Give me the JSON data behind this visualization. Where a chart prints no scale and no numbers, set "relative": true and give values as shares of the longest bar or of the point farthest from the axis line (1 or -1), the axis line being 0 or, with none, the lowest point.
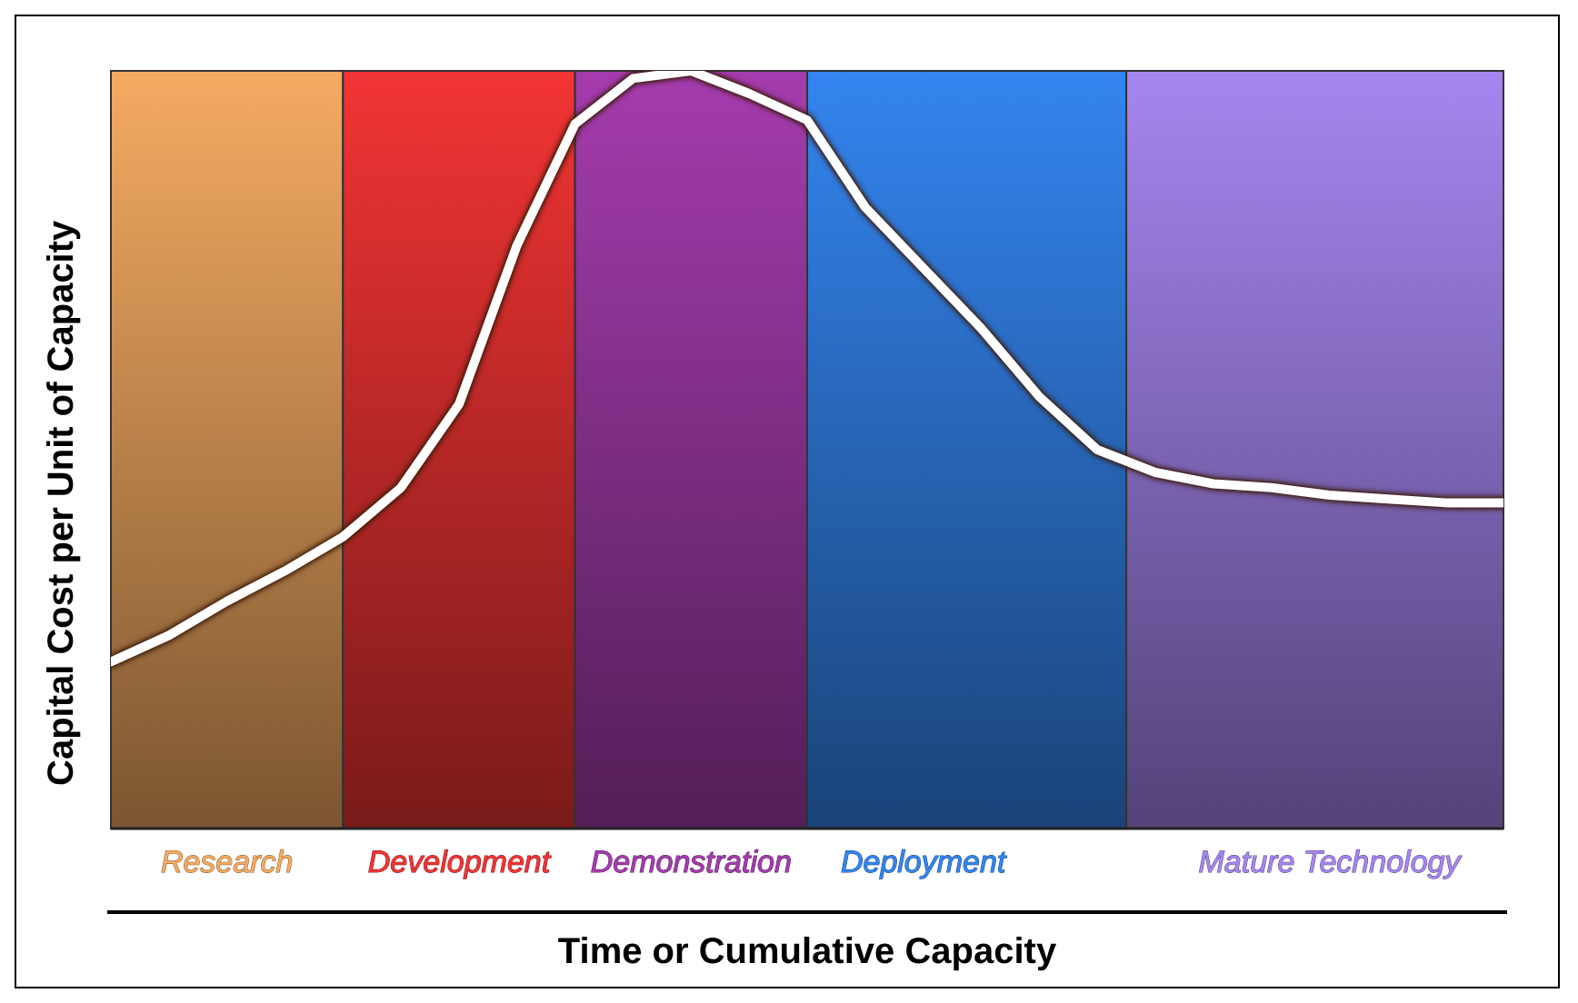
{
  "chart_data": {
    "type": "line",
    "relative": true,
    "xlabel": "Time or Cumulative Capacity",
    "ylabel": "Capital Cost per Unit of Capacity",
    "marker": "none",
    "line_style": "solid",
    "categories": [
      null,
      null,
      "Research",
      null,
      null,
      null,
      "Development",
      null,
      null,
      null,
      "Demonstration",
      null,
      null,
      null,
      "Deployment",
      null,
      null,
      null,
      null,
      null,
      null,
      "Mature Technology",
      null,
      null,
      null
    ],
    "colors": [
      null,
      null,
      "#f5ab62",
      null,
      null,
      null,
      "#f23434",
      null,
      null,
      null,
      "#a53cae",
      null,
      null,
      null,
      "#3485f0",
      null,
      null,
      null,
      null,
      null,
      null,
      "#a586f0",
      null,
      null,
      null
    ],
    "series": [
      {
        "color": "#ffffff",
        "values": [
          0.22,
          0.255,
          0.3,
          0.34,
          0.385,
          0.45,
          0.56,
          0.77,
          0.93,
          0.99,
          1.0,
          0.97,
          0.935,
          0.82,
          0.74,
          0.66,
          0.57,
          0.5,
          0.47,
          0.455,
          0.45,
          0.44,
          0.435,
          0.43,
          0.43
        ]
      }
    ]
  }
}
